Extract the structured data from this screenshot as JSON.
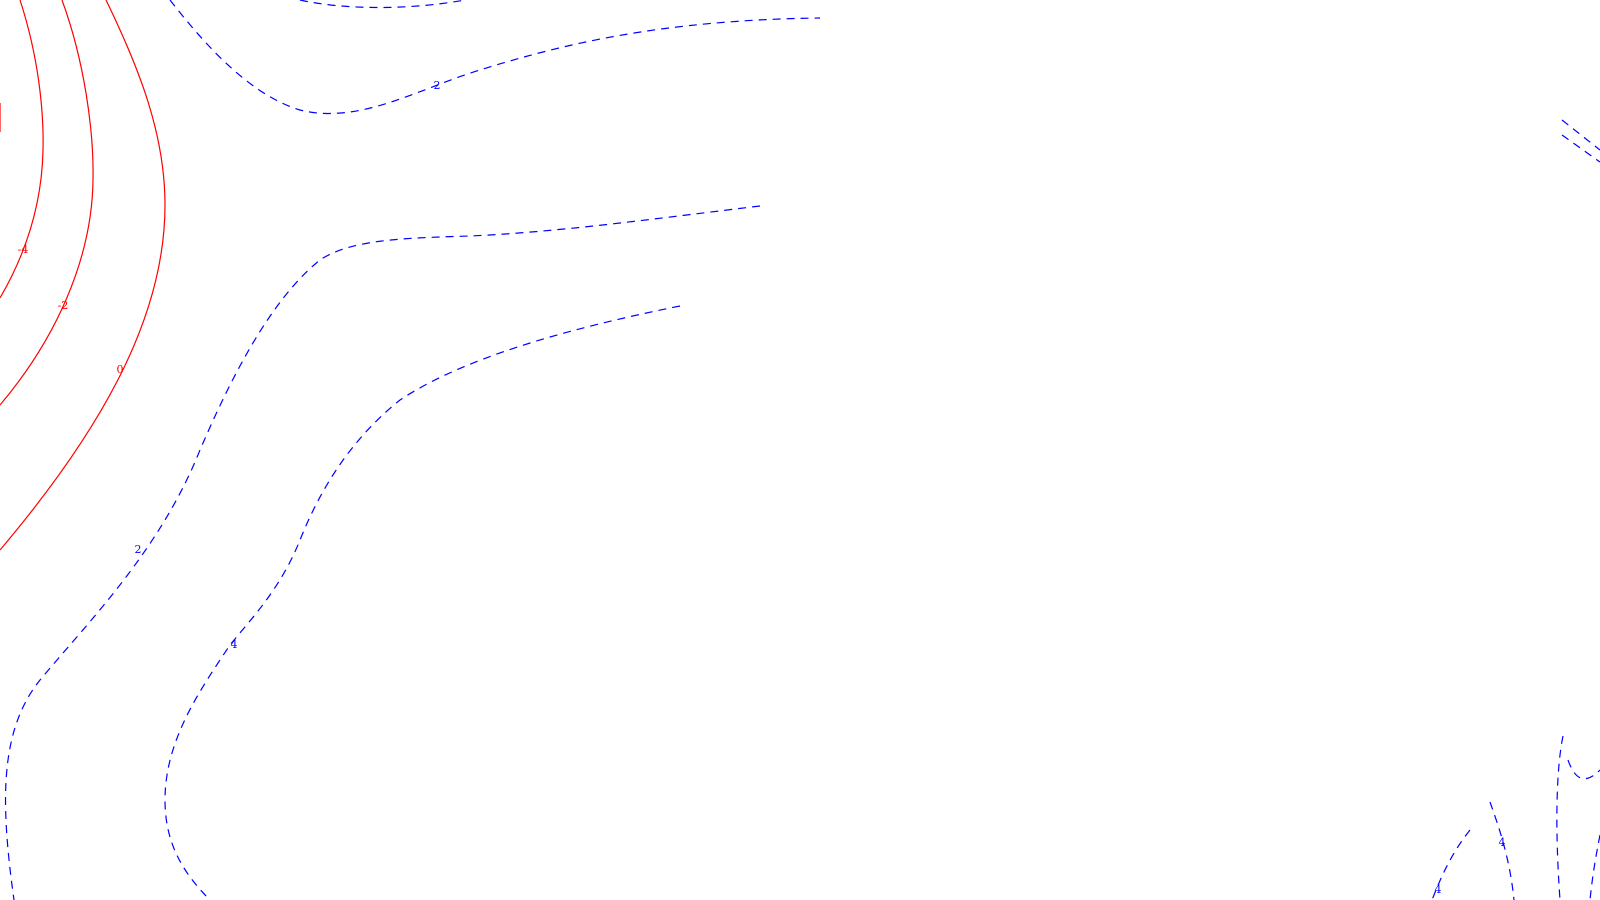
{
  "chart_data": {
    "type": "contour",
    "title": "",
    "xlabel": "",
    "ylabel": "",
    "grid": false,
    "legend": "none",
    "colors": {
      "negative": "#ff0000",
      "positive": "#0000ff",
      "background": "#ffffff"
    },
    "levels": [
      {
        "value": -4,
        "label": "-4",
        "sign": "negative",
        "style": "solid"
      },
      {
        "value": -2,
        "label": "-2",
        "sign": "negative",
        "style": "solid"
      },
      {
        "value": 0,
        "label": "0",
        "sign": "negative",
        "style": "solid"
      },
      {
        "value": 2,
        "label": "2",
        "sign": "positive",
        "style": "dashed"
      },
      {
        "value": 2,
        "label": "2",
        "sign": "positive",
        "style": "dashed"
      },
      {
        "value": 4,
        "label": "4",
        "sign": "positive",
        "style": "dashed"
      },
      {
        "value": 4,
        "label": "4",
        "sign": "positive",
        "style": "dashed"
      },
      {
        "value": 4,
        "label": "4",
        "sign": "positive",
        "style": "dashed"
      }
    ]
  }
}
